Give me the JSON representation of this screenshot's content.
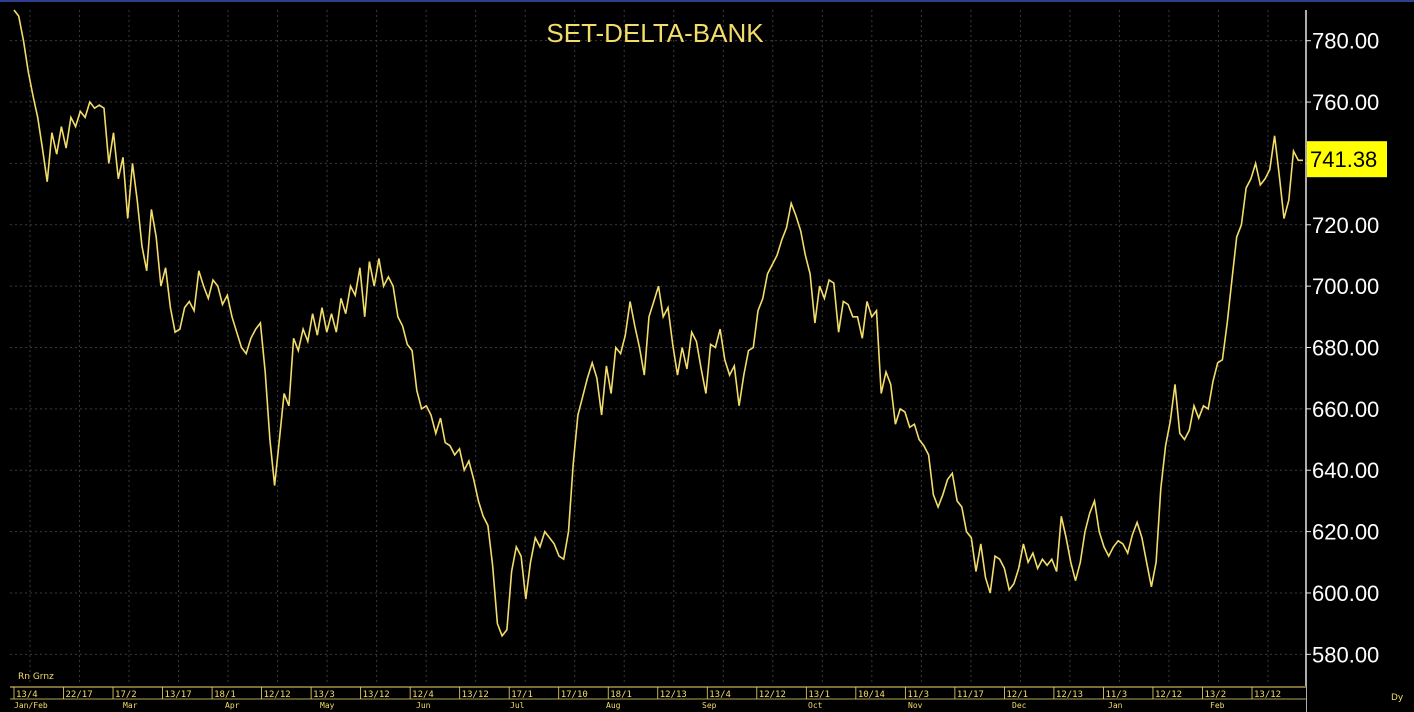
{
  "chart_data": {
    "type": "line",
    "title": "SET-DELTA-BANK",
    "xlabel": "",
    "ylabel": "",
    "ylim": [
      570,
      790
    ],
    "y_ticks": [
      580,
      600,
      620,
      640,
      660,
      680,
      700,
      720,
      740,
      760,
      780
    ],
    "y_tick_labels": [
      "580.00",
      "600.00",
      "620.00",
      "640.00",
      "660.00",
      "680.00",
      "700.00",
      "720.00",
      "740.00",
      "760.00",
      "780.00"
    ],
    "last_value": 741.38,
    "last_value_label": "741.38",
    "grid": true,
    "periodicity_label": "Dy",
    "corner_label": "Rn Grnz",
    "x_tick_labels": [
      "13/4",
      "22/17",
      "17/2",
      "13/17",
      "18/1",
      "12/12",
      "13/3",
      "13/12",
      "12/4",
      "13/12",
      "17/1",
      "17/10",
      "18/1",
      "12/13",
      "13/4",
      "12/12",
      "13/1",
      "10/14",
      "11/3",
      "11/17",
      "12/1",
      "12/13",
      "11/3",
      "12/12",
      "13/2",
      "13/12"
    ],
    "month_labels": [
      "Jan/Feb",
      "Mar",
      "Apr",
      "May",
      "Jun",
      "Jul",
      "Aug",
      "Sep",
      "Oct",
      "Nov",
      "Dec",
      "Jan",
      "Feb"
    ],
    "series": [
      {
        "color": "#f2dc6a",
        "values": [
          790,
          788,
          780,
          770,
          762,
          755,
          745,
          734,
          750,
          743,
          752,
          745,
          755,
          752,
          757,
          755,
          760,
          758,
          759,
          758,
          740,
          750,
          735,
          742,
          722,
          740,
          728,
          713,
          705,
          725,
          716,
          700,
          706,
          693,
          685,
          686,
          693,
          695,
          692,
          705,
          700,
          696,
          702,
          700,
          694,
          697,
          690,
          685,
          680,
          678,
          683,
          686,
          688,
          672,
          650,
          635,
          650,
          665,
          661,
          683,
          679,
          686,
          682,
          691,
          684,
          693,
          685,
          691,
          685,
          696,
          691,
          700,
          697,
          706,
          690,
          708,
          700,
          709,
          700,
          703,
          700,
          690,
          687,
          681,
          679,
          666,
          660,
          661,
          658,
          652,
          657,
          649,
          648,
          645,
          647,
          640,
          643,
          637,
          630,
          625,
          622,
          609,
          590,
          586,
          588,
          607,
          615,
          612,
          598,
          610,
          618,
          615,
          620,
          618,
          616,
          612,
          611,
          620,
          642,
          658,
          664,
          670,
          675,
          670,
          658,
          674,
          665,
          680,
          678,
          684,
          695,
          687,
          680,
          671,
          690,
          695,
          700,
          690,
          693,
          681,
          671,
          680,
          673,
          685,
          682,
          673,
          665,
          681,
          680,
          686,
          676,
          671,
          674,
          661,
          671,
          679,
          680,
          692,
          696,
          704,
          707,
          710,
          715,
          719,
          727,
          723,
          718,
          710,
          704,
          688,
          700,
          696,
          702,
          701,
          685,
          695,
          694,
          690,
          690,
          683,
          695,
          690,
          692,
          665,
          672,
          668,
          655,
          660,
          659,
          654,
          655,
          650,
          648,
          645,
          632,
          628,
          632,
          637,
          639,
          630,
          628,
          620,
          618,
          607,
          616,
          605,
          600,
          612,
          611,
          608,
          601,
          603,
          608,
          616,
          610,
          613,
          608,
          611,
          609,
          611,
          607,
          625,
          618,
          610,
          604,
          610,
          620,
          626,
          630,
          620,
          615,
          612,
          615,
          617,
          616,
          613,
          619,
          623,
          618,
          610,
          602,
          610,
          634,
          648,
          656,
          668,
          652,
          650,
          653,
          661,
          657,
          661,
          660,
          669,
          675,
          676,
          688,
          702,
          716,
          720,
          732,
          735,
          740,
          733,
          735,
          738,
          749,
          736,
          722,
          728,
          744,
          741,
          741
        ]
      }
    ]
  }
}
